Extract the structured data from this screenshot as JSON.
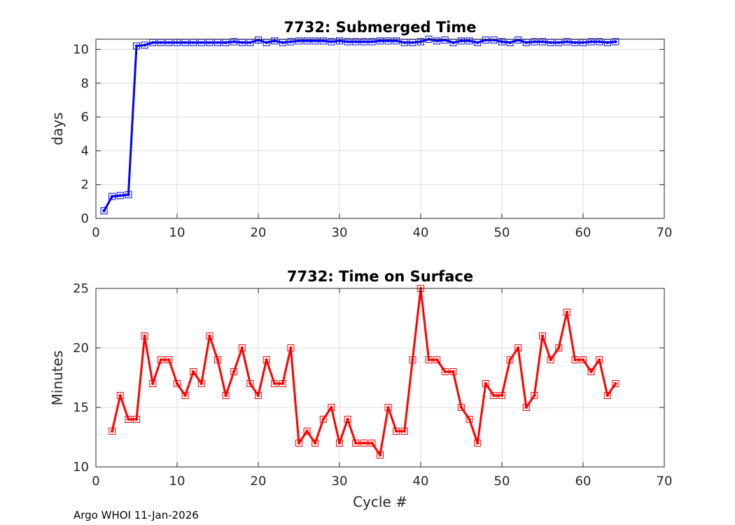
{
  "footer": "Argo WHOI 11-Jan-2026",
  "chart_data": [
    {
      "type": "line",
      "title": "7732: Submerged Time",
      "xlabel": "",
      "ylabel": "days",
      "xlim": [
        0,
        70
      ],
      "ylim": [
        0,
        10.6
      ],
      "xticks": [
        0,
        10,
        20,
        30,
        40,
        50,
        60,
        70
      ],
      "yticks": [
        0,
        2,
        4,
        6,
        8,
        10
      ],
      "grid": true,
      "color": "#0000ff",
      "marker": "square",
      "x": [
        1,
        2,
        3,
        4,
        5,
        6,
        7,
        8,
        9,
        10,
        11,
        12,
        13,
        14,
        15,
        16,
        17,
        18,
        19,
        20,
        21,
        22,
        23,
        24,
        25,
        26,
        27,
        28,
        29,
        30,
        31,
        32,
        33,
        34,
        35,
        36,
        37,
        38,
        39,
        40,
        41,
        42,
        43,
        44,
        45,
        46,
        47,
        48,
        49,
        50,
        51,
        52,
        53,
        54,
        55,
        56,
        57,
        58,
        59,
        60,
        61,
        62,
        63,
        64
      ],
      "values": [
        0.45,
        1.3,
        1.35,
        1.4,
        10.2,
        10.25,
        10.4,
        10.4,
        10.4,
        10.4,
        10.4,
        10.4,
        10.4,
        10.4,
        10.4,
        10.4,
        10.45,
        10.4,
        10.4,
        10.55,
        10.4,
        10.5,
        10.4,
        10.45,
        10.5,
        10.5,
        10.5,
        10.5,
        10.45,
        10.5,
        10.45,
        10.45,
        10.45,
        10.45,
        10.5,
        10.5,
        10.5,
        10.4,
        10.4,
        10.45,
        10.6,
        10.5,
        10.55,
        10.4,
        10.5,
        10.5,
        10.4,
        10.55,
        10.55,
        10.45,
        10.4,
        10.55,
        10.4,
        10.45,
        10.45,
        10.4,
        10.4,
        10.45,
        10.4,
        10.4,
        10.45,
        10.45,
        10.4,
        10.45
      ]
    },
    {
      "type": "line",
      "title": "7732: Time on Surface",
      "xlabel": "Cycle #",
      "ylabel": "Minutes",
      "xlim": [
        0,
        70
      ],
      "ylim": [
        10,
        25
      ],
      "xticks": [
        0,
        10,
        20,
        30,
        40,
        50,
        60,
        70
      ],
      "yticks": [
        10,
        15,
        20,
        25
      ],
      "grid": true,
      "color": "#ff0000",
      "marker": "square",
      "x": [
        2,
        3,
        4,
        5,
        6,
        7,
        8,
        9,
        10,
        11,
        12,
        13,
        14,
        15,
        16,
        17,
        18,
        19,
        20,
        21,
        22,
        23,
        24,
        25,
        26,
        27,
        28,
        29,
        30,
        31,
        32,
        33,
        34,
        35,
        36,
        37,
        38,
        39,
        40,
        41,
        42,
        43,
        44,
        45,
        46,
        47,
        48,
        49,
        50,
        51,
        52,
        53,
        54,
        55,
        56,
        57,
        58,
        59,
        60,
        61,
        62,
        63,
        64
      ],
      "values": [
        13,
        16,
        14,
        14,
        21,
        17,
        19,
        19,
        17,
        16,
        18,
        17,
        21,
        19,
        16,
        18,
        20,
        17,
        16,
        19,
        17,
        17,
        20,
        12,
        13,
        12,
        14,
        15,
        12,
        14,
        12,
        12,
        12,
        11,
        15,
        13,
        13,
        19,
        25,
        19,
        19,
        18,
        18,
        15,
        14,
        12,
        17,
        16,
        16,
        19,
        20,
        15,
        16,
        21,
        19,
        20,
        23,
        19,
        19,
        18,
        19,
        16,
        17
      ]
    }
  ]
}
